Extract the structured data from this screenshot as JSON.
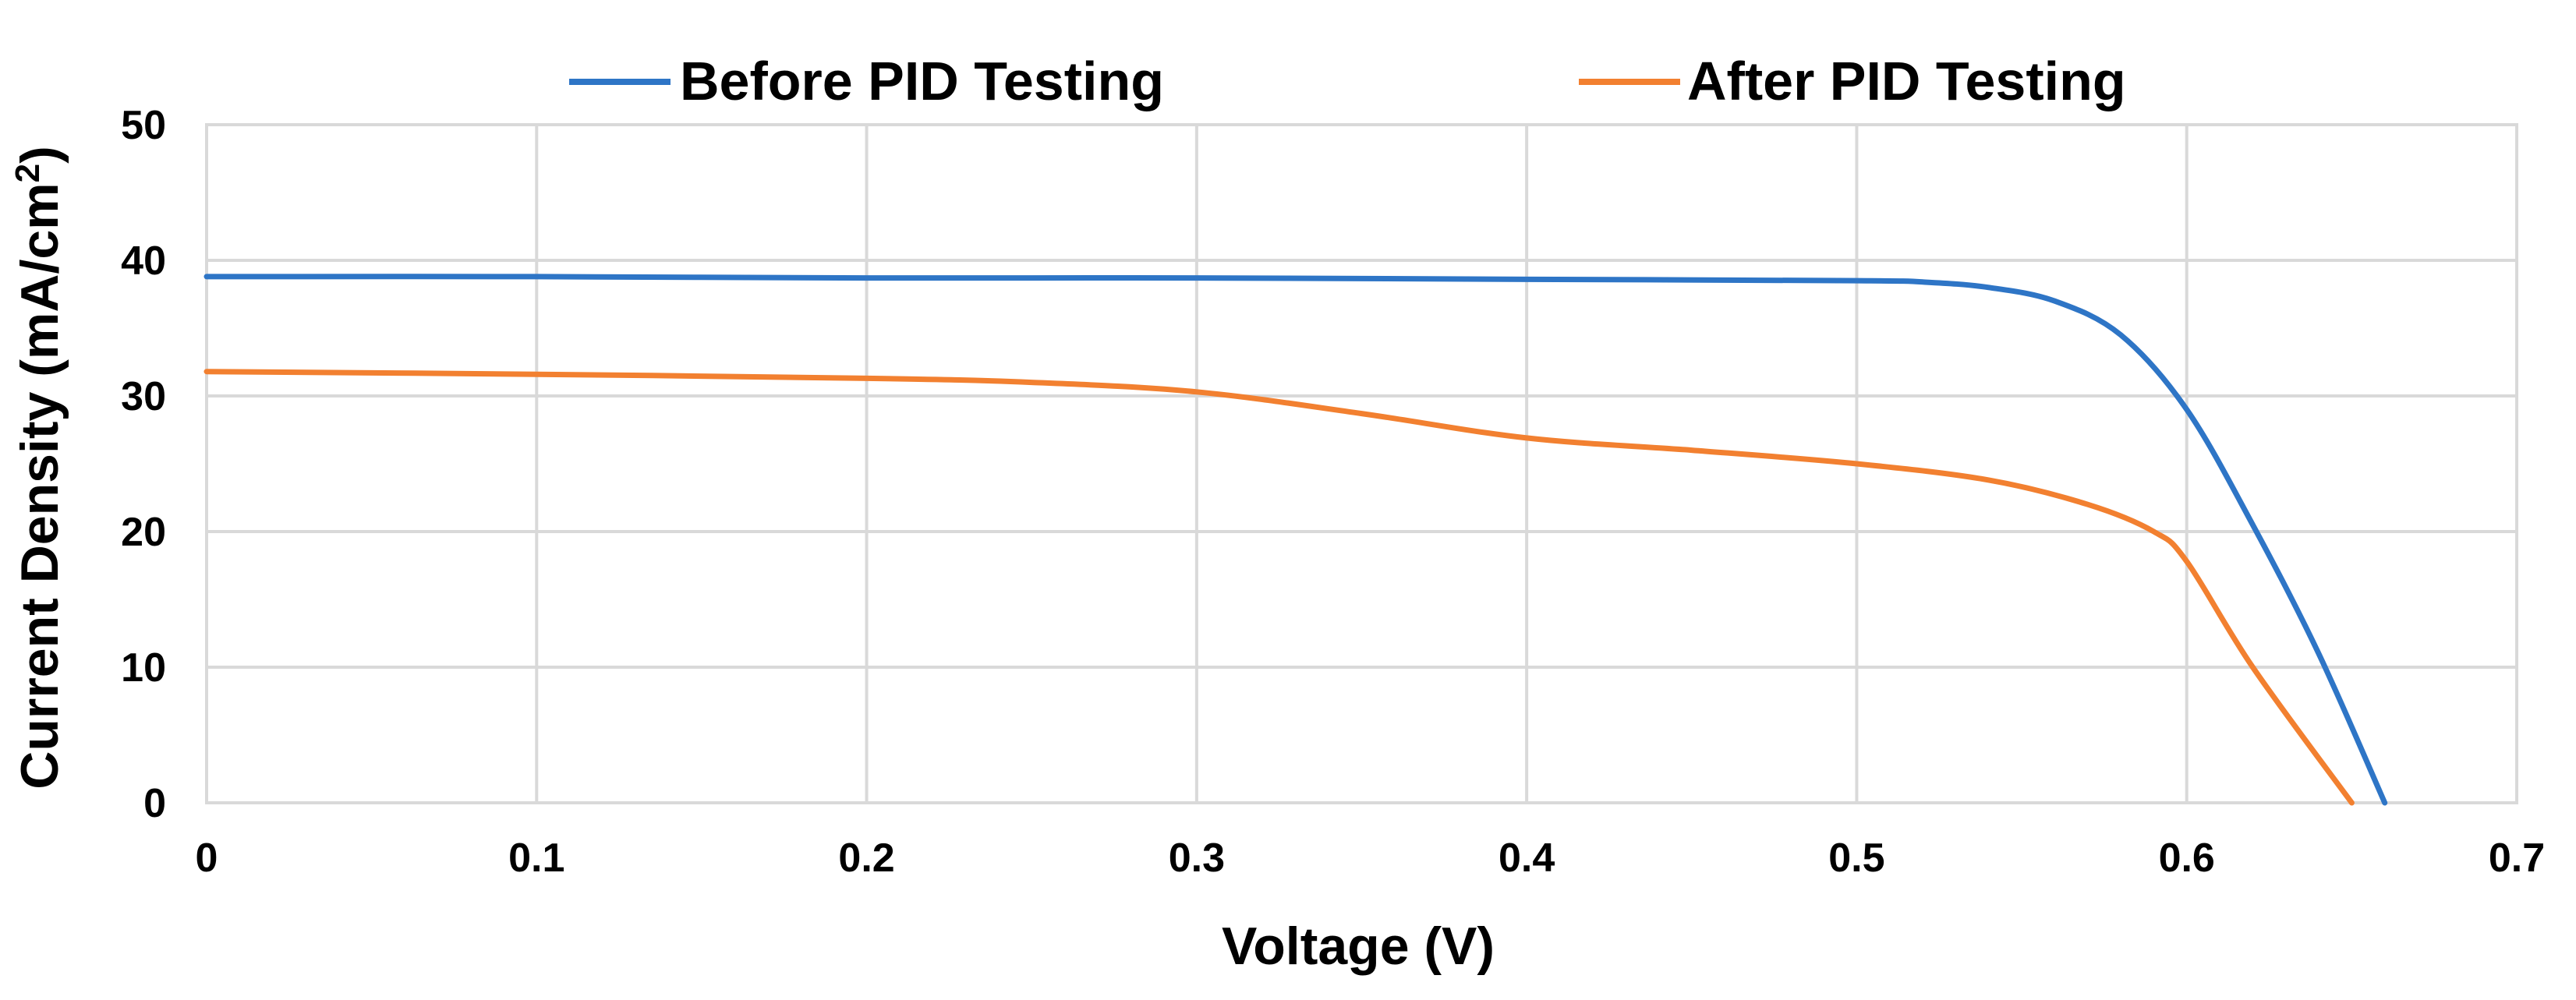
{
  "chart_data": {
    "type": "line",
    "title": "",
    "xlabel": "Voltage (V)",
    "ylabel_main": "Current Density (mA/cm",
    "ylabel_sup": "2",
    "ylabel_end": ")",
    "xlim": [
      0,
      0.7
    ],
    "ylim": [
      0,
      50
    ],
    "xticks": [
      0,
      0.1,
      0.2,
      0.3,
      0.4,
      0.5,
      0.6,
      0.7
    ],
    "xtick_labels": [
      "0",
      "0.1",
      "0.2",
      "0.3",
      "0.4",
      "0.5",
      "0.6",
      "0.7"
    ],
    "yticks": [
      0,
      10,
      20,
      30,
      40,
      50
    ],
    "ytick_labels": [
      "0",
      "10",
      "20",
      "30",
      "40",
      "50"
    ],
    "grid": true,
    "legend_position": "top",
    "series": [
      {
        "name": "Before PID Testing",
        "color": "#2e75c6",
        "x": [
          0,
          0.1,
          0.2,
          0.3,
          0.4,
          0.5,
          0.52,
          0.54,
          0.56,
          0.58,
          0.6,
          0.62,
          0.64,
          0.66
        ],
        "y": [
          38.8,
          38.8,
          38.7,
          38.7,
          38.6,
          38.5,
          38.4,
          38.0,
          37.0,
          34.5,
          29.0,
          20.5,
          11.0,
          0
        ]
      },
      {
        "name": "After PID Testing",
        "color": "#f28030",
        "x": [
          0,
          0.1,
          0.2,
          0.25,
          0.3,
          0.35,
          0.4,
          0.45,
          0.5,
          0.54,
          0.57,
          0.59,
          0.6,
          0.62,
          0.65
        ],
        "y": [
          31.8,
          31.6,
          31.3,
          31.0,
          30.3,
          28.7,
          26.9,
          26.0,
          25.0,
          23.8,
          22.0,
          20.0,
          17.8,
          10.0,
          0
        ]
      }
    ]
  }
}
